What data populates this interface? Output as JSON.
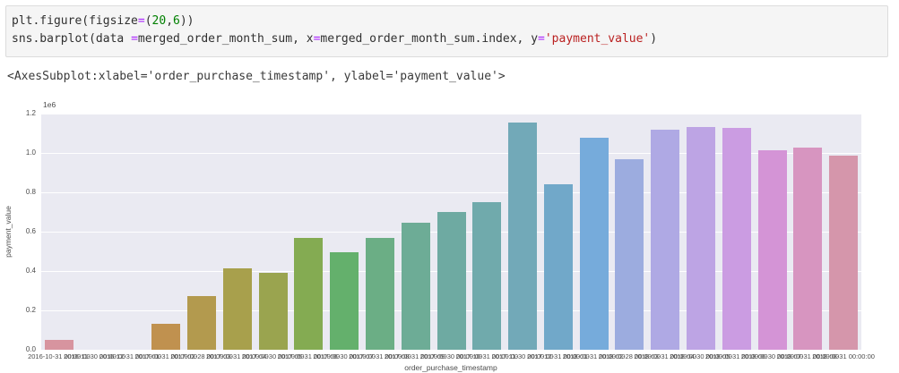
{
  "code": {
    "lines": [
      {
        "tokens": [
          {
            "text": "plt.figure(figsize",
            "type": "plain"
          },
          {
            "text": "=",
            "type": "op"
          },
          {
            "text": "(",
            "type": "plain"
          },
          {
            "text": "20",
            "type": "num"
          },
          {
            "text": ",",
            "type": "plain"
          },
          {
            "text": "6",
            "type": "num"
          },
          {
            "text": "))",
            "type": "plain"
          }
        ]
      },
      {
        "tokens": [
          {
            "text": "sns.barplot(data ",
            "type": "plain"
          },
          {
            "text": "=",
            "type": "op"
          },
          {
            "text": "merged_order_month_sum, x",
            "type": "plain"
          },
          {
            "text": "=",
            "type": "op"
          },
          {
            "text": "merged_order_month_sum.index, y",
            "type": "plain"
          },
          {
            "text": "=",
            "type": "op"
          },
          {
            "text": "'payment_value'",
            "type": "str"
          },
          {
            "text": ")",
            "type": "plain"
          }
        ]
      }
    ]
  },
  "output": {
    "text": "<AxesSubplot:xlabel='order_purchase_timestamp', ylabel='payment_value'>"
  },
  "chart_data": {
    "type": "bar",
    "title": "",
    "xlabel": "order_purchase_timestamp",
    "ylabel": "payment_value",
    "offset_text": "1e6",
    "ylim": [
      0,
      1200000
    ],
    "yticks": [
      0,
      200000,
      400000,
      600000,
      800000,
      1000000,
      1200000
    ],
    "ytick_labels": [
      "0.0",
      "0.2",
      "0.4",
      "0.6",
      "0.8",
      "1.0",
      "1.2"
    ],
    "grid": true,
    "legend": false,
    "plot_bg": "#eaeaf2",
    "grid_color": "#ffffff",
    "categories": [
      "2016-10-31 00:00:00",
      "2016-11-30 00:00:00",
      "2016-12-31 00:00:00",
      "2017-01-31 00:00:00",
      "2017-02-28 00:00:00",
      "2017-03-31 00:00:00",
      "2017-04-30 00:00:00",
      "2017-05-31 00:00:00",
      "2017-06-30 00:00:00",
      "2017-07-31 00:00:00",
      "2017-08-31 00:00:00",
      "2017-09-30 00:00:00",
      "2017-10-31 00:00:00",
      "2017-11-30 00:00:00",
      "2017-12-31 00:00:00",
      "2018-01-31 00:00:00",
      "2018-02-28 00:00:00",
      "2018-03-31 00:00:00",
      "2018-04-30 00:00:00",
      "2018-05-31 00:00:00",
      "2018-06-30 00:00:00",
      "2018-07-31 00:00:00",
      "2018-08-31 00:00:00"
    ],
    "values": [
      49000,
      0,
      20,
      131000,
      272000,
      415000,
      392000,
      567000,
      494000,
      569000,
      647000,
      699000,
      748000,
      1154000,
      840000,
      1078000,
      966000,
      1119000,
      1130000,
      1127000,
      1013000,
      1028000,
      987000
    ],
    "bar_colors": [
      "#d7949f",
      "#d2975c",
      "#c99551",
      "#c0914f",
      "#b39a4e",
      "#a8a04c",
      "#9aa44f",
      "#84ab52",
      "#64b06c",
      "#6bae85",
      "#6dac96",
      "#6eaaa2",
      "#70aaac",
      "#72a9b8",
      "#71a8c9",
      "#76abdb",
      "#9cacdf",
      "#afa9e4",
      "#bda4e4",
      "#cb9ce2",
      "#d494d6",
      "#d795c0",
      "#d596ab"
    ]
  }
}
